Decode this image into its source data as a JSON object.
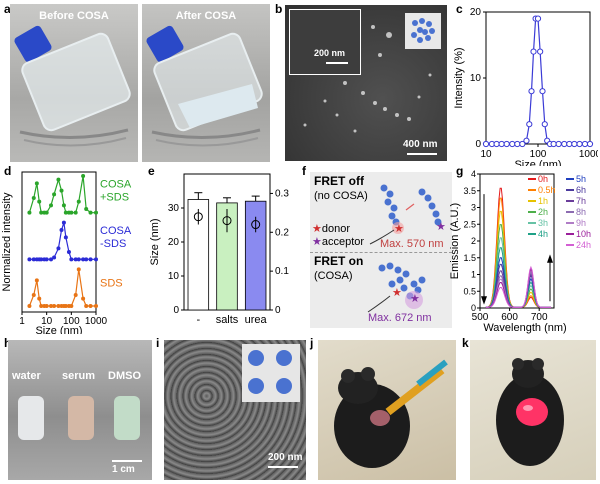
{
  "panel_labels": [
    "a",
    "b",
    "c",
    "d",
    "e",
    "f",
    "g",
    "h",
    "i",
    "j",
    "k"
  ],
  "panel_a": {
    "left_caption": "Before COSA",
    "right_caption": "After COSA"
  },
  "panel_b": {
    "inset_scale": "200 nm",
    "main_scale": "400 nm"
  },
  "panel_h": {
    "labels": [
      "water",
      "serum",
      "DMSO"
    ],
    "scale": "1 cm"
  },
  "panel_i": {
    "scale": "200 nm"
  },
  "panel_f": {
    "fret_off": "FRET off",
    "no_cosa": "(no COSA)",
    "donor": "donor",
    "acceptor": "acceptor",
    "max1": "Max. 570 nm",
    "fret_on": "FRET on",
    "cosa": "(COSA)",
    "max2": "Max. 672 nm"
  },
  "chart_data": [
    {
      "panel": "c",
      "type": "line",
      "xlabel": "Size (nm)",
      "ylabel": "Intensity (%)",
      "xscale": "log",
      "xlim": [
        10,
        1000
      ],
      "ylim": [
        0,
        20
      ],
      "xticks": [
        "10",
        "100",
        "1000"
      ],
      "yticks": [
        "0",
        "10",
        "20"
      ],
      "x": [
        10,
        13,
        16,
        20,
        25,
        32,
        40,
        50,
        60,
        68,
        75,
        82,
        90,
        100,
        110,
        122,
        135,
        150,
        170,
        200,
        250,
        320,
        400,
        500,
        630,
        800,
        1000
      ],
      "y": [
        0,
        0,
        0,
        0,
        0,
        0,
        0,
        0,
        0.5,
        3,
        8,
        14,
        19,
        19,
        14,
        8,
        3,
        0.5,
        0,
        0,
        0,
        0,
        0,
        0,
        0,
        0,
        0
      ],
      "color": "#3b3bd6"
    },
    {
      "panel": "d",
      "type": "line",
      "xlabel": "Size (nm)",
      "ylabel": "Normalized intensity",
      "xscale": "log",
      "xlim": [
        1,
        1000
      ],
      "xticks": [
        "1",
        "10",
        "100",
        "1000"
      ],
      "series": [
        {
          "name": "COSA\n+SDS",
          "color": "#2aa52a",
          "offset": 2,
          "x": [
            2,
            3,
            4,
            5,
            6,
            8,
            10,
            15,
            20,
            30,
            40,
            50,
            60,
            80,
            100,
            150,
            200,
            300,
            400,
            600,
            1000
          ],
          "y": [
            0,
            0.4,
            0.8,
            0.3,
            0,
            0,
            0,
            0.2,
            0.5,
            0.9,
            0.6,
            0.2,
            0,
            0,
            0,
            0,
            0.3,
            1,
            0.1,
            0,
            0
          ]
        },
        {
          "name": "COSA\n-SDS",
          "color": "#2b2bd6",
          "offset": 1,
          "x": [
            2,
            3,
            4,
            5,
            6,
            8,
            10,
            15,
            20,
            30,
            40,
            50,
            60,
            80,
            100,
            150,
            200,
            300,
            400,
            600,
            1000
          ],
          "y": [
            0,
            0,
            0,
            0,
            0,
            0,
            0,
            0,
            0.05,
            0.3,
            0.8,
            1,
            0.6,
            0.2,
            0,
            0,
            0,
            0,
            0,
            0,
            0
          ]
        },
        {
          "name": "SDS",
          "color": "#e87415",
          "offset": 0,
          "x": [
            2,
            3,
            4,
            5,
            6,
            8,
            10,
            15,
            20,
            30,
            40,
            50,
            60,
            80,
            100,
            150,
            200,
            300,
            400,
            600,
            1000
          ],
          "y": [
            0,
            0.3,
            0.7,
            0.2,
            0,
            0,
            0,
            0,
            0,
            0,
            0,
            0,
            0,
            0,
            0,
            0.3,
            1,
            0.2,
            0,
            0,
            0
          ]
        }
      ]
    },
    {
      "panel": "e",
      "type": "bar",
      "categories": [
        "-",
        "salts",
        "urea"
      ],
      "values": [
        32.5,
        31.5,
        32
      ],
      "errors": [
        2,
        1.5,
        1.5
      ],
      "pdi": [
        0.24,
        0.23,
        0.22
      ],
      "pdi_err": [
        0.02,
        0.03,
        0.02
      ],
      "colors": [
        "#ffffff",
        "#c9f0c0",
        "#8a8af0"
      ],
      "ylabel": "Size (nm)",
      "y2label": "PDI",
      "ylim": [
        0,
        40
      ],
      "y2lim": [
        0,
        0.35
      ],
      "yticks": [
        "0",
        "10",
        "20",
        "30"
      ],
      "y2ticks": [
        "0",
        "0.1",
        "0.2",
        "0.3"
      ]
    },
    {
      "panel": "g",
      "type": "line",
      "xlabel": "Wavelength (nm)",
      "ylabel": "Emission (A.U.)",
      "xlim": [
        500,
        750
      ],
      "ylim": [
        0,
        4
      ],
      "xticks": [
        "500",
        "600",
        "700"
      ],
      "yticks": [
        "0",
        "0.5",
        "1",
        "1.5",
        "2",
        "2.5",
        "3",
        "3.5",
        "4"
      ],
      "series": [
        {
          "name": "0h",
          "color": "#e41a1c",
          "peak1": 3.6,
          "peak2": 0.3
        },
        {
          "name": "0.5h",
          "color": "#ff7f00",
          "peak1": 3.3,
          "peak2": 0.35
        },
        {
          "name": "1h",
          "color": "#e6c200",
          "peak1": 2.9,
          "peak2": 0.45
        },
        {
          "name": "2h",
          "color": "#4daf4a",
          "peak1": 2.5,
          "peak2": 0.55
        },
        {
          "name": "3h",
          "color": "#66c2a5",
          "peak1": 2.1,
          "peak2": 0.65
        },
        {
          "name": "4h",
          "color": "#1fa187",
          "peak1": 1.8,
          "peak2": 0.75
        },
        {
          "name": "5h",
          "color": "#1f3fbf",
          "peak1": 1.5,
          "peak2": 0.85
        },
        {
          "name": "6h",
          "color": "#4b3a9e",
          "peak1": 1.3,
          "peak2": 0.95
        },
        {
          "name": "7h",
          "color": "#6a3d9a",
          "peak1": 1.1,
          "peak2": 1.0
        },
        {
          "name": "8h",
          "color": "#8c6bb1",
          "peak1": 0.95,
          "peak2": 1.05
        },
        {
          "name": "9h",
          "color": "#b07cc6",
          "peak1": 0.85,
          "peak2": 1.1
        },
        {
          "name": "10h",
          "color": "#9b1f9b",
          "peak1": 0.75,
          "peak2": 1.15
        },
        {
          "name": "24h",
          "color": "#d35fd3",
          "peak1": 0.6,
          "peak2": 1.2
        }
      ]
    }
  ],
  "colors": {
    "accent_blue": "#3b3bd6",
    "mouse_red": "#ff3366",
    "cap_blue": "#2a49c8"
  }
}
